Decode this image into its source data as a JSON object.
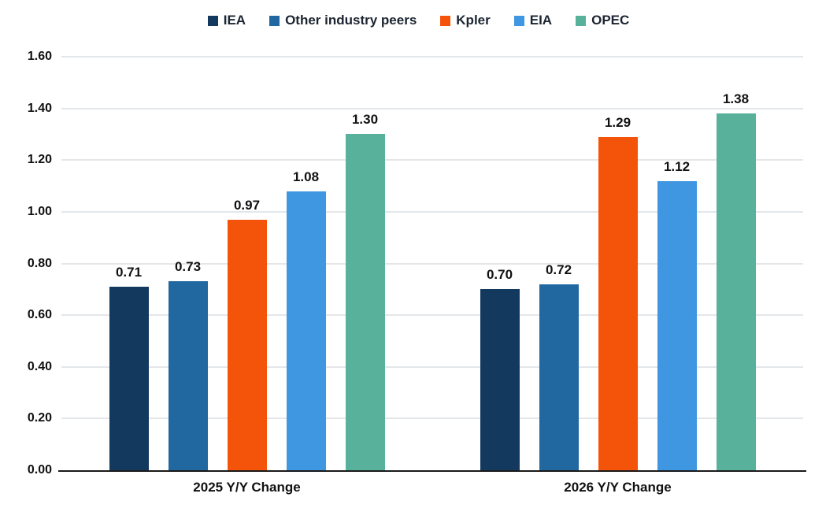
{
  "chart_data": {
    "type": "bar",
    "title": "",
    "categories": [
      "2025 Y/Y Change",
      "2026 Y/Y Change"
    ],
    "series": [
      {
        "name": "IEA",
        "color": "#14395e",
        "values": [
          0.71,
          0.7
        ],
        "labels": [
          "0.71",
          "0.70"
        ]
      },
      {
        "name": "Other industry peers",
        "color": "#2268a0",
        "values": [
          0.73,
          0.72
        ],
        "labels": [
          "0.73",
          "0.72"
        ]
      },
      {
        "name": "Kpler",
        "color": "#f4540a",
        "values": [
          0.97,
          1.29
        ],
        "labels": [
          "0.97",
          "1.29"
        ]
      },
      {
        "name": "EIA",
        "color": "#3e97e0",
        "values": [
          1.08,
          1.12
        ],
        "labels": [
          "1.08",
          "1.12"
        ]
      },
      {
        "name": "OPEC",
        "color": "#58b29b",
        "values": [
          1.3,
          1.38
        ],
        "labels": [
          "1.30",
          "1.38"
        ]
      }
    ],
    "ylim": [
      0,
      1.6
    ],
    "yticks": [
      "0.00",
      "0.20",
      "0.40",
      "0.60",
      "0.80",
      "1.00",
      "1.20",
      "1.40",
      "1.60"
    ],
    "grid": true,
    "legend_position": "top",
    "colors": {
      "gridline": "#e4e7ea",
      "axis_line": "#1a1a1a",
      "label_text": "#111111"
    }
  }
}
